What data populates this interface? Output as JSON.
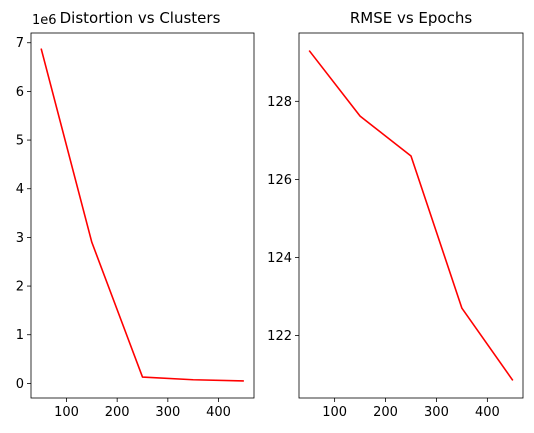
{
  "chart_data": [
    {
      "type": "line",
      "title": "Distortion vs Clusters",
      "xlabel": "",
      "ylabel": "",
      "y_offset_label": "1e6",
      "x": [
        50,
        150,
        250,
        350,
        450
      ],
      "series": [
        {
          "values": [
            6880000,
            2900000,
            130000,
            75000,
            50000
          ],
          "color": "#ff0000"
        }
      ],
      "xlim": [
        30,
        470
      ],
      "ylim": [
        -300000,
        7200000
      ],
      "xticks": [
        100,
        200,
        300,
        400
      ],
      "xtick_labels": [
        "100",
        "200",
        "300",
        "400"
      ],
      "yticks": [
        0,
        1000000,
        2000000,
        3000000,
        4000000,
        5000000,
        6000000,
        7000000
      ],
      "ytick_labels": [
        "0",
        "1",
        "2",
        "3",
        "4",
        "5",
        "6",
        "7"
      ],
      "grid": false,
      "legend": null
    },
    {
      "type": "line",
      "title": "RMSE vs Epochs",
      "xlabel": "",
      "ylabel": "",
      "x": [
        50,
        150,
        250,
        350,
        450
      ],
      "series": [
        {
          "values": [
            129.3,
            127.62,
            126.6,
            122.7,
            120.85
          ],
          "color": "#ff0000"
        }
      ],
      "xlim": [
        30,
        470
      ],
      "ylim": [
        120.4,
        129.75
      ],
      "xticks": [
        100,
        200,
        300,
        400
      ],
      "xtick_labels": [
        "100",
        "200",
        "300",
        "400"
      ],
      "yticks": [
        122,
        124,
        126,
        128
      ],
      "ytick_labels": [
        "122",
        "124",
        "126",
        "128"
      ],
      "grid": false,
      "legend": null
    }
  ]
}
